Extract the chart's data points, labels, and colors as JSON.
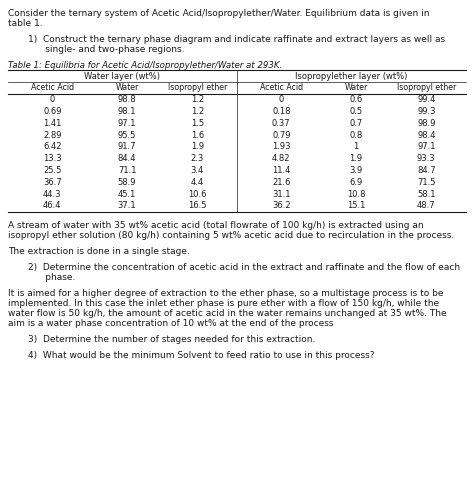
{
  "title_line1": "Consider the ternary system of Acetic Acid/Isopropylether/Water. Equilibrium data is given in",
  "title_line2": "table 1.",
  "q1_line1": "1)  Construct the ternary phase diagram and indicate raffinate and extract layers as well as",
  "q1_line2": "      single- and two-phase regions.",
  "table_caption": "Table 1: Equilibria for Acetic Acid/Isopropylether/Water at 293K.",
  "water_layer_header": "Water layer (wt%)",
  "iso_layer_header": "Isopropylether layer (wt%)",
  "col_headers": [
    "Acetic Acid",
    "Water",
    "Isopropyl ether",
    "Acetic Acid",
    "Water",
    "Isopropyl ether"
  ],
  "water_layer_data": [
    [
      0,
      98.8,
      1.2
    ],
    [
      0.69,
      98.1,
      1.2
    ],
    [
      1.41,
      97.1,
      1.5
    ],
    [
      2.89,
      95.5,
      1.6
    ],
    [
      6.42,
      91.7,
      1.9
    ],
    [
      13.3,
      84.4,
      2.3
    ],
    [
      25.5,
      71.1,
      3.4
    ],
    [
      36.7,
      58.9,
      4.4
    ],
    [
      44.3,
      45.1,
      10.6
    ],
    [
      46.4,
      37.1,
      16.5
    ]
  ],
  "iso_layer_data": [
    [
      0,
      0.6,
      99.4
    ],
    [
      0.18,
      0.5,
      99.3
    ],
    [
      0.37,
      0.7,
      98.9
    ],
    [
      0.79,
      0.8,
      98.4
    ],
    [
      1.93,
      1.0,
      97.1
    ],
    [
      4.82,
      1.9,
      93.3
    ],
    [
      11.4,
      3.9,
      84.7
    ],
    [
      21.6,
      6.9,
      71.5
    ],
    [
      31.1,
      10.8,
      58.1
    ],
    [
      36.2,
      15.1,
      48.7
    ]
  ],
  "para1_l1": "A stream of water with 35 wt% acetic acid (total flowrate of 100 kg/h) is extracted using an",
  "para1_l2": "isopropyl ether solution (80 kg/h) containing 5 wt% acetic acid due to recirculation in the process.",
  "para2": "The extraction is done in a single stage.",
  "q2_l1": "2)  Determine the concentration of acetic acid in the extract and raffinate and the flow of each",
  "q2_l2": "      phase.",
  "para3_l1": "It is aimed for a higher degree of extraction to the ether phase, so a multistage process is to be",
  "para3_l2": "implemented. In this case the inlet ether phase is pure ether with a flow of 150 kg/h, while the",
  "para3_l3": "water flow is 50 kg/h, the amount of acetic acid in the water remains unchanged at 35 wt%. The",
  "para3_l4": "aim is a water phase concentration of 10 wt% at the end of the process",
  "q3": "3)  Determine the number of stages needed for this extraction.",
  "q4": "4)  What would be the minimum Solvent to feed ratio to use in this process?",
  "bg_color": "#ffffff",
  "text_color": "#1a1a1a",
  "fs_body": 6.5,
  "fs_table": 6.0,
  "fs_caption": 6.2
}
